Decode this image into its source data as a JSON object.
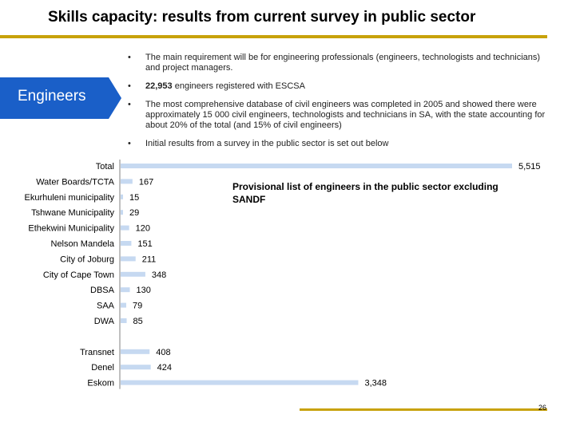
{
  "title": "Skills capacity: results from current survey in public sector",
  "engineers_label": "Engineers",
  "bullets": [
    {
      "bold": "",
      "text": "The main requirement will be for engineering professionals (engineers, technologists and technicians) and project managers."
    },
    {
      "bold": "22,953",
      "text": " engineers registered with ESCSA"
    },
    {
      "bold": "",
      "text": "The most comprehensive database of civil engineers was completed in 2005 and showed there were approximately 15 000 civil engineers, technologists and technicians in SA, with the state accounting for about 20% of the total (and 15% of civil engineers)"
    },
    {
      "bold": "",
      "text": "Initial results from a survey in the public sector is set out below"
    }
  ],
  "callout": "Provisional list of engineers in the public sector excluding SANDF",
  "page_number": "26",
  "colors": {
    "accent": "#c8a20a",
    "engineers_box": "#1a5fc8",
    "bar": "#c6d9f1"
  },
  "chart_data": {
    "type": "bar",
    "orientation": "horizontal",
    "title": "",
    "xlabel": "",
    "ylabel": "",
    "xlim": [
      0,
      5515
    ],
    "grid": false,
    "categories": [
      "Total",
      "Water Boards/TCTA",
      "Ekurhuleni municipality",
      "Tshwane Municipality",
      "Ethekwini Municipality",
      "Nelson Mandela",
      "City of Joburg",
      "City of Cape Town",
      "DBSA",
      "SAA",
      "DWA",
      "",
      "Transnet",
      "Denel",
      "Eskom"
    ],
    "values": [
      5515,
      167,
      15,
      29,
      120,
      151,
      211,
      348,
      130,
      79,
      85,
      null,
      408,
      424,
      3348
    ],
    "value_labels": [
      "5,515",
      "167",
      "15",
      "29",
      "120",
      "151",
      "211",
      "348",
      "130",
      "79",
      "85",
      "",
      "408",
      "424",
      "3,348"
    ]
  }
}
